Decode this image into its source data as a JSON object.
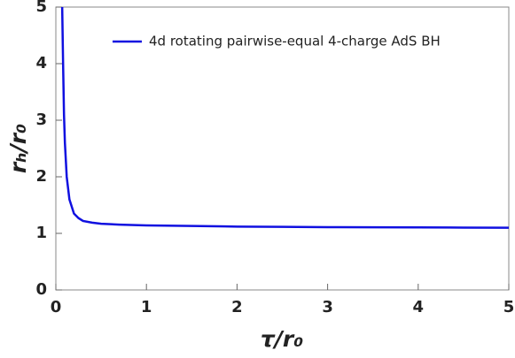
{
  "chart_data": {
    "type": "line",
    "xlabel": "τ/r₀",
    "ylabel": "rₕ/r₀",
    "x": [
      0.07,
      0.08,
      0.09,
      0.1,
      0.12,
      0.15,
      0.2,
      0.25,
      0.3,
      0.4,
      0.5,
      0.7,
      1,
      1.5,
      2,
      2.5,
      3,
      3.5,
      4,
      4.5,
      5
    ],
    "series": [
      {
        "name": "4d rotating pairwise-equal 4-charge AdS BH",
        "color": "#1010e0",
        "values": [
          5,
          4,
          3.1,
          2.6,
          2.0,
          1.6,
          1.35,
          1.27,
          1.22,
          1.19,
          1.17,
          1.155,
          1.14,
          1.13,
          1.12,
          1.115,
          1.11,
          1.107,
          1.105,
          1.102,
          1.1
        ]
      }
    ],
    "xlim": [
      0,
      5
    ],
    "ylim": [
      0,
      5
    ],
    "xticks": [
      0,
      1,
      2,
      3,
      4,
      5
    ],
    "yticks": [
      0,
      1,
      2,
      3,
      4,
      5
    ],
    "legend": "top-right"
  }
}
